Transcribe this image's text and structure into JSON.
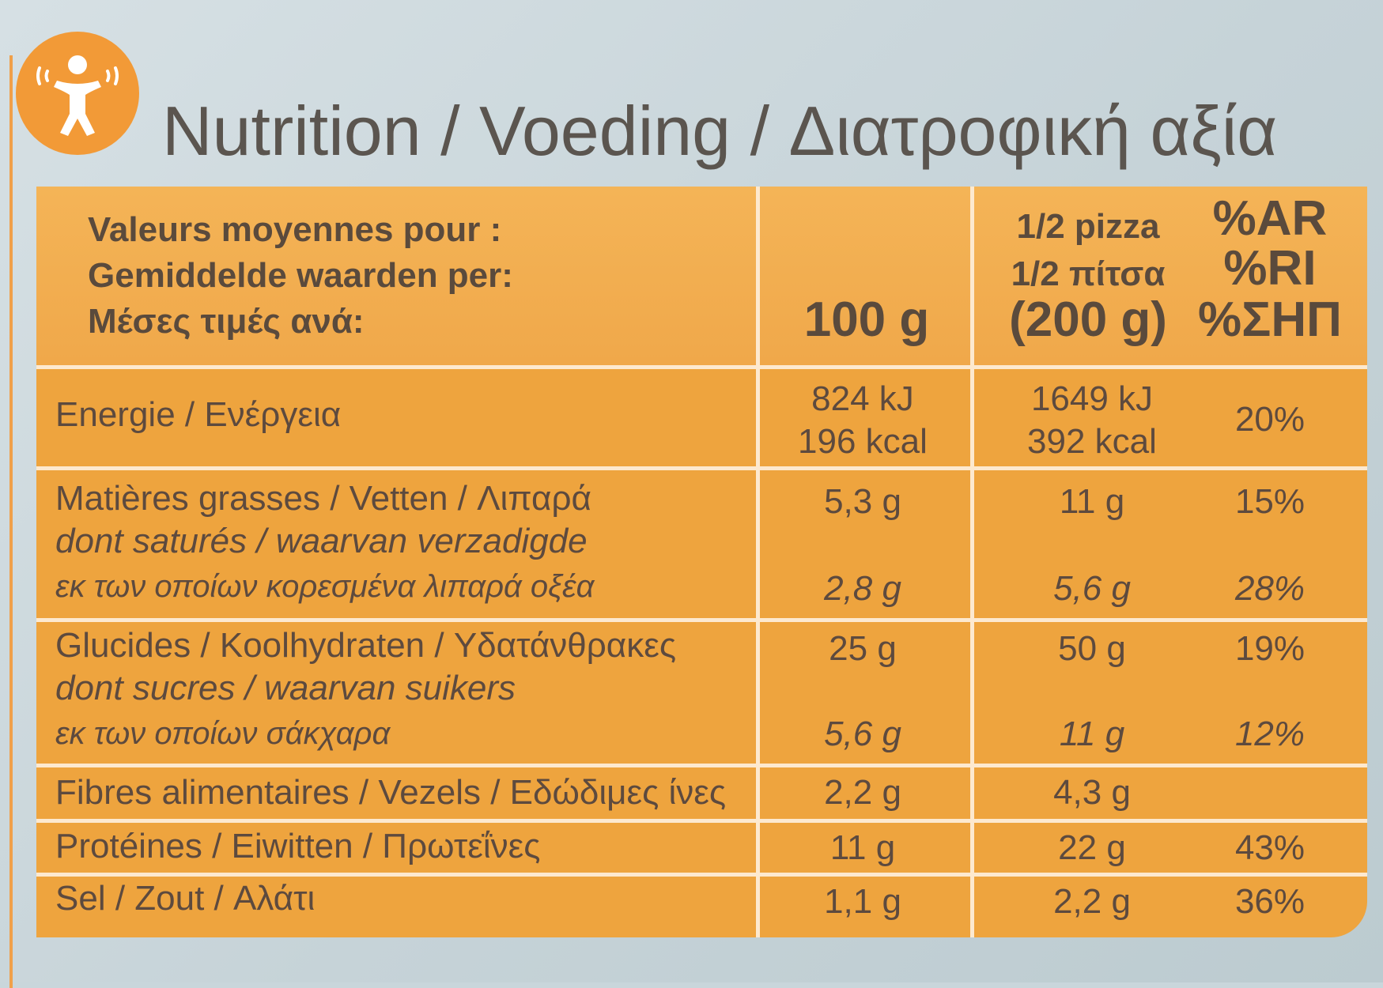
{
  "title": "Nutrition / Voeding / Διατροφική αξία",
  "logo_icon": "active-person-icon",
  "header": {
    "label_fr": "Valeurs moyennes pour :",
    "label_nl": "Gemiddelde waarden per:",
    "label_el": "Μέσες τιμές ανά:",
    "col_100g": "100 g",
    "col_half_fr": "1/2 pizza",
    "col_half_el": "1/2 πίτσα",
    "col_half_weight": "(200 g)",
    "col_pct_fr": "%AR",
    "col_pct_nl": "%RI",
    "col_pct_el": "%ΣΗΠ"
  },
  "rows": {
    "energy": {
      "label": "Energie / Ενέργεια",
      "v100_kj": "824 kJ",
      "v100_kcal": "196 kcal",
      "half_kj": "1649 kJ",
      "half_kcal": "392 kcal",
      "pct": "20%"
    },
    "fat": {
      "label": "Matières grasses / Vetten / Λιπαρά",
      "v100": "5,3 g",
      "half": "11 g",
      "pct": "15%"
    },
    "saturates": {
      "label_1": "dont saturés / waarvan verzadigde",
      "label_2": "εκ των οποίων κορεσμένα λιπαρά οξέα",
      "v100": "2,8 g",
      "half": "5,6 g",
      "pct": "28%"
    },
    "carbs": {
      "label": "Glucides / Koolhydraten / Υδατάνθρακες",
      "v100": "25 g",
      "half": "50 g",
      "pct": "19%"
    },
    "sugars": {
      "label_1": "dont sucres / waarvan suikers",
      "label_2": "εκ των οποίων σάκχαρα",
      "v100": "5,6 g",
      "half": "11 g",
      "pct": "12%"
    },
    "fibre": {
      "label": "Fibres alimentaires / Vezels / Εδώδιμες ίνες",
      "v100": "2,2 g",
      "half": "4,3 g",
      "pct": ""
    },
    "protein": {
      "label": "Protéines / Eiwitten / Πρωτεΐνες",
      "v100": "11 g",
      "half": "22 g",
      "pct": "43%"
    },
    "salt": {
      "label": "Sel / Zout / Αλάτι",
      "v100": "1,1 g",
      "half": "2,2 g",
      "pct": "36%"
    }
  },
  "colors": {
    "orange": "#eea43e",
    "header_orange": "#f2ae50",
    "divider": "#fde9cf",
    "text": "#5d4a3e",
    "background": "#c9d6db"
  }
}
